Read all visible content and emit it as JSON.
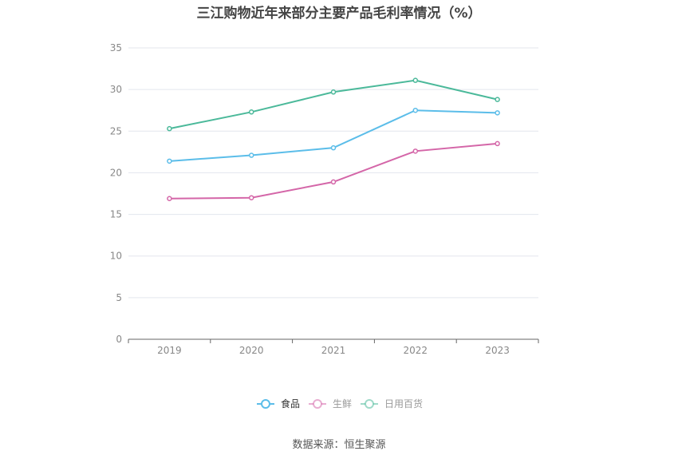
{
  "title": "三江购物近年来部分主要产品毛利率情况（%）",
  "source": "数据来源：恒生聚源",
  "chart_data": {
    "type": "line",
    "title": "三江购物近年来部分主要产品毛利率情况（%）",
    "x": [
      "2019",
      "2020",
      "2021",
      "2022",
      "2023"
    ],
    "ylim": [
      0,
      35
    ],
    "yticks": [
      0,
      5,
      10,
      15,
      20,
      25,
      30,
      35
    ],
    "grid": true,
    "legend_position": "bottom",
    "series": [
      {
        "name": "食品",
        "color": "#5bbde9",
        "values": [
          21.4,
          22.1,
          23.0,
          27.5,
          27.2
        ]
      },
      {
        "name": "生鲜",
        "color": "#d466a8",
        "values": [
          16.9,
          17.0,
          18.9,
          22.6,
          23.5
        ]
      },
      {
        "name": "日用百货",
        "color": "#4bb99a",
        "values": [
          25.3,
          27.3,
          29.7,
          31.1,
          28.8
        ]
      }
    ]
  }
}
